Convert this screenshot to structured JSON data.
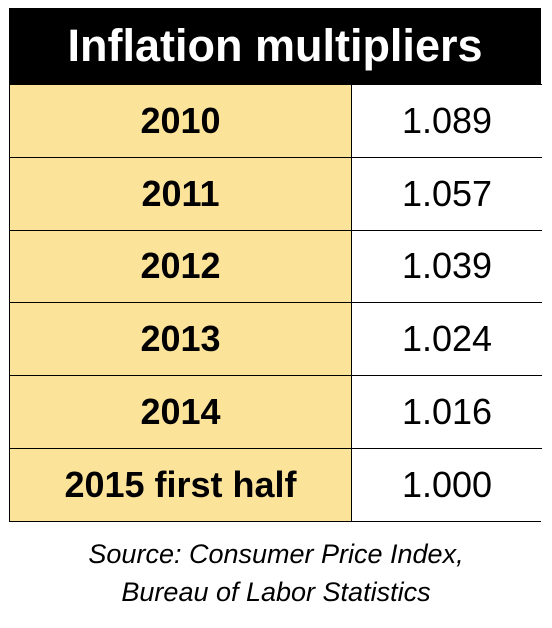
{
  "title": "Inflation multipliers",
  "rows": [
    {
      "year": "2010",
      "multiplier": "1.089"
    },
    {
      "year": "2011",
      "multiplier": "1.057"
    },
    {
      "year": "2012",
      "multiplier": "1.039"
    },
    {
      "year": "2013",
      "multiplier": "1.024"
    },
    {
      "year": "2014",
      "multiplier": "1.016"
    },
    {
      "year": "2015 first half",
      "multiplier": "1.000"
    }
  ],
  "source": {
    "line1": "Source: Consumer Price Index,",
    "line2": "Bureau of Labor Statistics"
  },
  "colors": {
    "header_bg": "#000000",
    "header_text": "#ffffff",
    "year_bg": "#fbe39a",
    "value_bg": "#ffffff"
  }
}
